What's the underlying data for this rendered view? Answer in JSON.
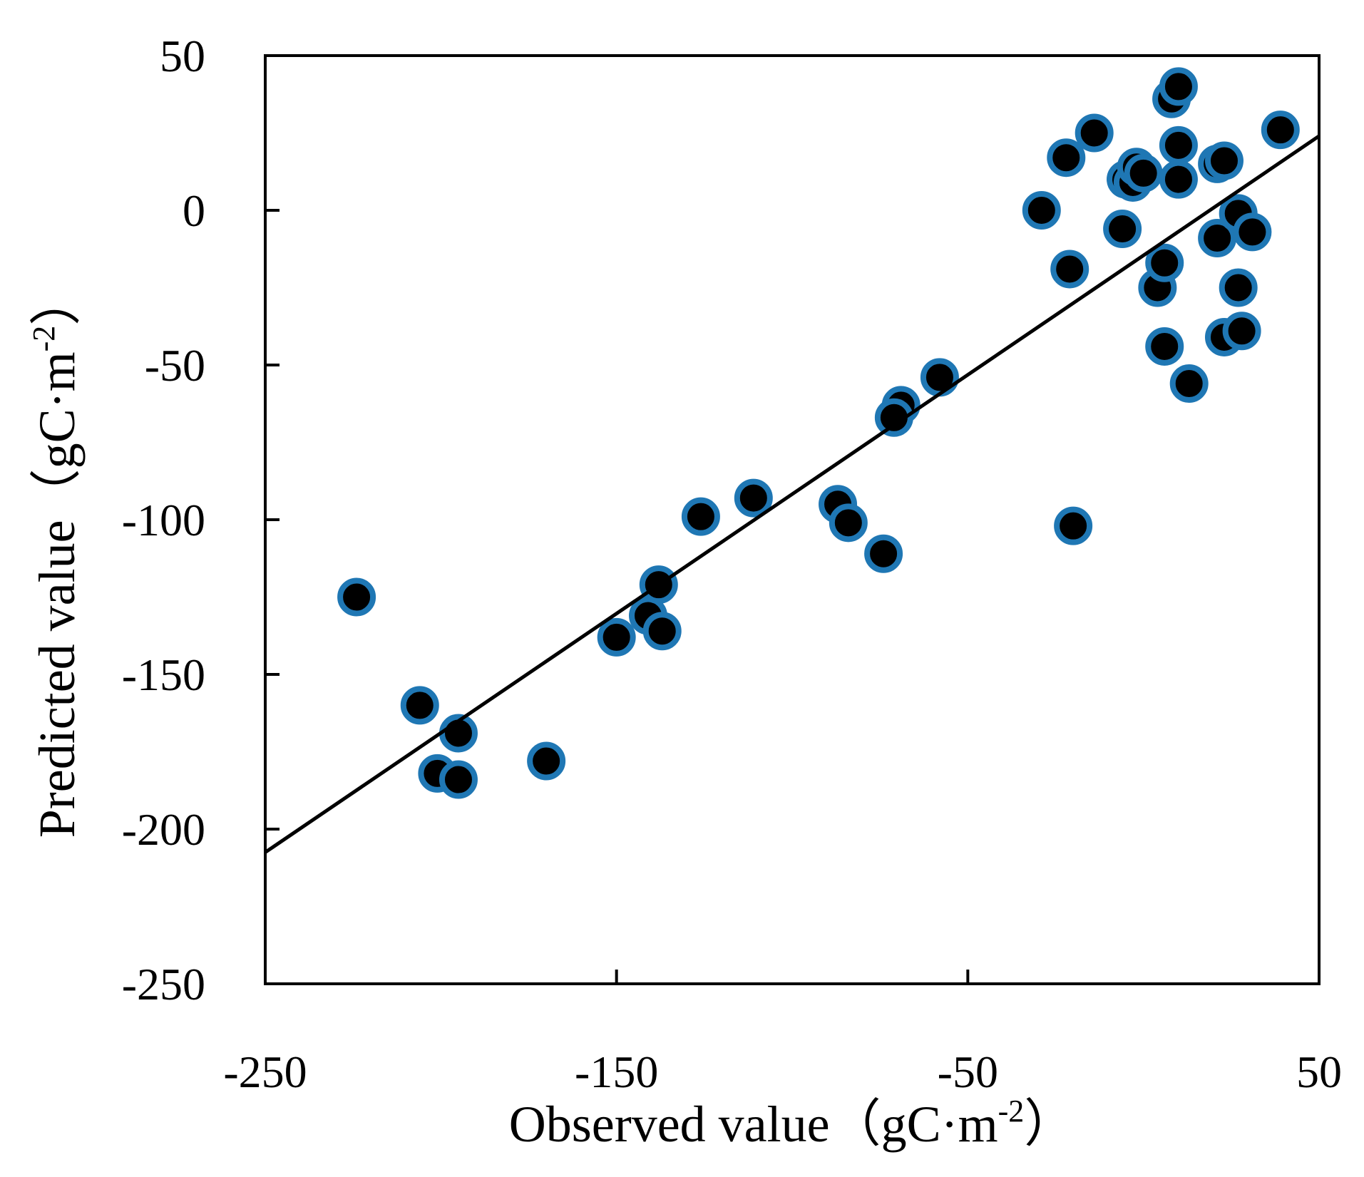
{
  "chart_data": {
    "type": "scatter",
    "title": "",
    "xlabel": "Observed value（gC·m",
    "xlabel_sup": "-2",
    "xlabel_close": "）",
    "ylabel": "Predicted value（gC·m",
    "ylabel_sup": "-2",
    "ylabel_close": "）",
    "xlim": [
      -250,
      50
    ],
    "ylim": [
      -250,
      50
    ],
    "x_ticks": [
      -250,
      -150,
      -50,
      50
    ],
    "x_tick_labels": [
      "-250",
      "-150",
      "-50",
      "50"
    ],
    "y_ticks": [
      50,
      0,
      -50,
      -100,
      -150,
      -200,
      -250
    ],
    "y_tick_labels": [
      "50",
      "0",
      "-50",
      "-100",
      "-150",
      "-200",
      "-250"
    ],
    "grid": false,
    "marker_fill": "#000000",
    "marker_edge": "#1f77b4",
    "line_color": "#000000",
    "fit_line": {
      "x": [
        -250,
        50
      ],
      "y": [
        -207.5,
        24
      ]
    },
    "points": [
      {
        "x": -224,
        "y": -125
      },
      {
        "x": -206,
        "y": -160
      },
      {
        "x": -201,
        "y": -182
      },
      {
        "x": -195,
        "y": -169
      },
      {
        "x": -195,
        "y": -184
      },
      {
        "x": -170,
        "y": -178
      },
      {
        "x": -150,
        "y": -138
      },
      {
        "x": -141,
        "y": -131
      },
      {
        "x": -138,
        "y": -121
      },
      {
        "x": -137,
        "y": -136
      },
      {
        "x": -126,
        "y": -99
      },
      {
        "x": -111,
        "y": -93
      },
      {
        "x": -87,
        "y": -95
      },
      {
        "x": -84,
        "y": -101
      },
      {
        "x": -74,
        "y": -111
      },
      {
        "x": -69,
        "y": -63
      },
      {
        "x": -71,
        "y": -67
      },
      {
        "x": -58,
        "y": -54
      },
      {
        "x": -29,
        "y": 0
      },
      {
        "x": -22,
        "y": 17
      },
      {
        "x": -21,
        "y": -19
      },
      {
        "x": -20,
        "y": -102
      },
      {
        "x": -14,
        "y": 25
      },
      {
        "x": -6,
        "y": -6
      },
      {
        "x": -5,
        "y": 10
      },
      {
        "x": -3,
        "y": 9
      },
      {
        "x": -2,
        "y": 14
      },
      {
        "x": 0,
        "y": 12
      },
      {
        "x": 4,
        "y": -25
      },
      {
        "x": 6,
        "y": -17
      },
      {
        "x": 6,
        "y": -44
      },
      {
        "x": 8,
        "y": 36
      },
      {
        "x": 10,
        "y": 40
      },
      {
        "x": 10,
        "y": 21
      },
      {
        "x": 10,
        "y": 10
      },
      {
        "x": 13,
        "y": -56
      },
      {
        "x": 21,
        "y": -9
      },
      {
        "x": 21,
        "y": 15
      },
      {
        "x": 23,
        "y": 16
      },
      {
        "x": 23,
        "y": -41
      },
      {
        "x": 27,
        "y": -1
      },
      {
        "x": 27,
        "y": -25
      },
      {
        "x": 28,
        "y": -39
      },
      {
        "x": 31,
        "y": -7
      },
      {
        "x": 39,
        "y": 26
      }
    ]
  }
}
